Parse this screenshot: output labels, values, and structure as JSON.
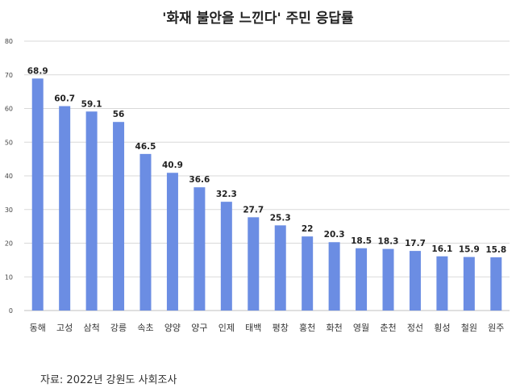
{
  "chart_data": {
    "type": "bar",
    "title": "'화재 불안을 느낀다' 주민 응답률",
    "xlabel": "",
    "ylabel": "",
    "categories": [
      "동해",
      "고성",
      "삼척",
      "강릉",
      "속초",
      "양양",
      "양구",
      "인제",
      "태백",
      "평창",
      "홍천",
      "화천",
      "영월",
      "춘천",
      "정선",
      "횡성",
      "철원",
      "원주"
    ],
    "values": [
      68.9,
      60.7,
      59.1,
      56,
      46.5,
      40.9,
      36.6,
      32.3,
      27.7,
      25.3,
      22,
      20.3,
      18.5,
      18.3,
      17.7,
      16.1,
      15.9,
      15.8
    ],
    "value_labels": [
      "68.9",
      "60.7",
      "59.1",
      "56",
      "46.5",
      "40.9",
      "36.6",
      "32.3",
      "27.7",
      "25.3",
      "22",
      "20.3",
      "18.5",
      "18.3",
      "17.7",
      "16.1",
      "15.9",
      "15.8"
    ],
    "ylim": [
      0,
      80
    ],
    "yticks": [
      0,
      10,
      20,
      30,
      40,
      50,
      60,
      70,
      80
    ],
    "grid": true,
    "legend": "none",
    "bar_color": "#6b8de3"
  },
  "source": "자료: 2022년 강원도 사회조사"
}
